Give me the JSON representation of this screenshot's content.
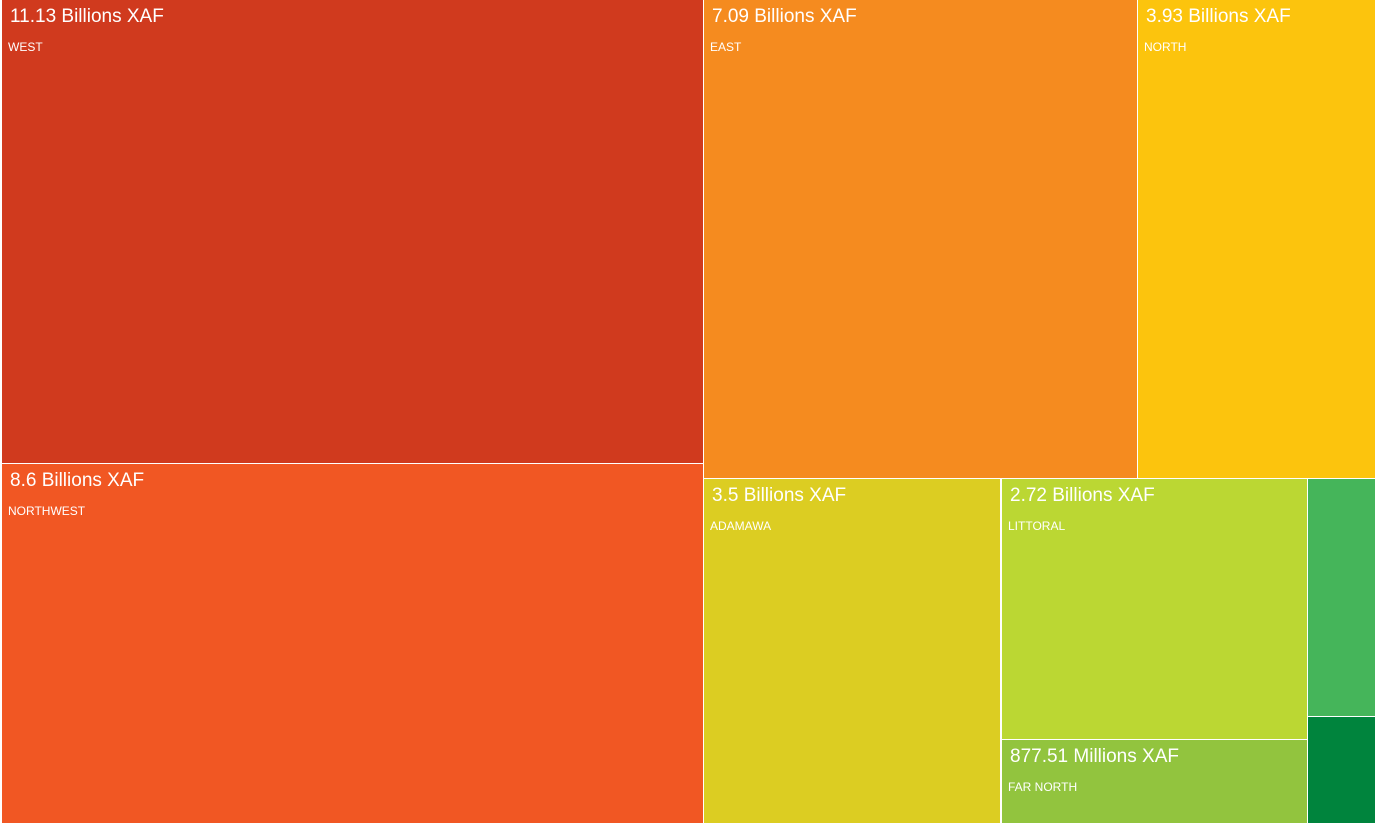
{
  "chart_data": {
    "type": "treemap",
    "unit": "XAF",
    "items": [
      {
        "name": "WEST",
        "value": 11130000000,
        "value_label": "11.13 Billions XAF",
        "color": "#d03a1e"
      },
      {
        "name": "NORTHWEST",
        "value": 8600000000,
        "value_label": "8.6 Billions XAF",
        "color": "#f15723"
      },
      {
        "name": "EAST",
        "value": 7090000000,
        "value_label": "7.09 Billions XAF",
        "color": "#f58b1f"
      },
      {
        "name": "NORTH",
        "value": 3930000000,
        "value_label": "3.93 Billions XAF",
        "color": "#fcc40d"
      },
      {
        "name": "ADAMAWA",
        "value": 3500000000,
        "value_label": "3.5 Billions XAF",
        "color": "#dccd22"
      },
      {
        "name": "LITTORAL",
        "value": 2720000000,
        "value_label": "2.72 Billions XAF",
        "color": "#bbd733"
      },
      {
        "name": "FAR NORTH",
        "value": 877510000,
        "value_label": "877.51 Millions XAF",
        "color": "#92c43e"
      },
      {
        "name": "",
        "value_label": "",
        "color": "#45b55a"
      },
      {
        "name": "",
        "value_label": "",
        "color": "#00843d"
      }
    ]
  }
}
